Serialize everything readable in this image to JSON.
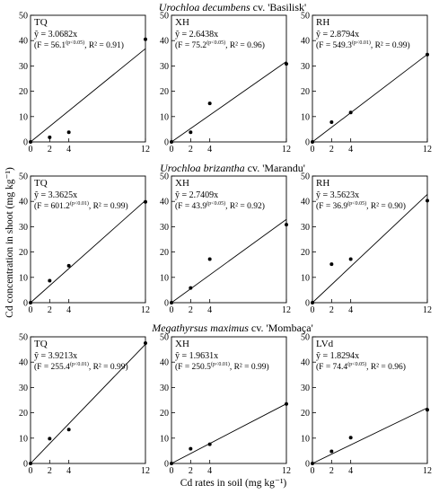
{
  "figure": {
    "ylabel": "Cd concentration in shoot (mg kg⁻¹)",
    "xlabel": "Cd rates in soil (mg kg⁻¹)"
  },
  "chart_data": [
    {
      "group": "Urochloa decumbens cv. 'Basilisk'",
      "panels": [
        {
          "type": "scatter",
          "label": "TQ",
          "x": [
            0,
            2,
            4,
            12
          ],
          "y": [
            0,
            1.8,
            3.8,
            40.5
          ],
          "fit": {
            "slope": 3.0682,
            "eq": "ŷ = 3.0682x",
            "stats": "(F = 56.1",
            "sig": "(p<0.05)",
            "r2": ", R² = 0.91)"
          },
          "xlim": [
            0,
            12
          ],
          "ylim": [
            0,
            50
          ],
          "xticks": [
            0,
            2,
            4,
            12
          ],
          "yticks": [
            0,
            10,
            20,
            30,
            40,
            50
          ]
        },
        {
          "type": "scatter",
          "label": "XH",
          "x": [
            0,
            2,
            4,
            12
          ],
          "y": [
            0,
            3.8,
            15.2,
            30.8
          ],
          "fit": {
            "slope": 2.6438,
            "eq": "ŷ = 2.6438x",
            "stats": "(F = 75.2",
            "sig": "(p<0.05)",
            "r2": ", R² = 0.96)"
          },
          "xlim": [
            0,
            12
          ],
          "ylim": [
            0,
            50
          ],
          "xticks": [
            0,
            2,
            4,
            12
          ],
          "yticks": [
            0,
            10,
            20,
            30,
            40,
            50
          ]
        },
        {
          "type": "scatter",
          "label": "RH",
          "x": [
            0,
            2,
            4,
            12
          ],
          "y": [
            0,
            7.8,
            11.6,
            34.5
          ],
          "fit": {
            "slope": 2.8794,
            "eq": "ŷ = 2.8794x",
            "stats": "(F = 549.3",
            "sig": "(p<0.01)",
            "r2": ", R² = 0.99)"
          },
          "xlim": [
            0,
            12
          ],
          "ylim": [
            0,
            50
          ],
          "xticks": [
            0,
            2,
            4,
            12
          ],
          "yticks": [
            0,
            10,
            20,
            30,
            40,
            50
          ]
        }
      ]
    },
    {
      "group": "Urochloa brizantha cv. 'Marandu'",
      "panels": [
        {
          "type": "scatter",
          "label": "TQ",
          "x": [
            0,
            2,
            4,
            12
          ],
          "y": [
            0,
            8.7,
            14.6,
            39.8
          ],
          "fit": {
            "slope": 3.3625,
            "eq": "ŷ = 3.3625x",
            "stats": "(F = 601.2",
            "sig": "(p<0.01)",
            "r2": ", R² = 0.99)"
          },
          "xlim": [
            0,
            12
          ],
          "ylim": [
            0,
            50
          ],
          "xticks": [
            0,
            2,
            4,
            12
          ],
          "yticks": [
            0,
            10,
            20,
            30,
            40,
            50
          ]
        },
        {
          "type": "scatter",
          "label": "XH",
          "x": [
            0,
            2,
            4,
            12
          ],
          "y": [
            0,
            5.8,
            17.2,
            30.8
          ],
          "fit": {
            "slope": 2.7409,
            "eq": "ŷ = 2.7409x",
            "stats": "(F = 43.9",
            "sig": "(p<0.05)",
            "r2": ", R² = 0.92)"
          },
          "xlim": [
            0,
            12
          ],
          "ylim": [
            0,
            50
          ],
          "xticks": [
            0,
            2,
            4,
            12
          ],
          "yticks": [
            0,
            10,
            20,
            30,
            40,
            50
          ]
        },
        {
          "type": "scatter",
          "label": "RH",
          "x": [
            0,
            2,
            4,
            12
          ],
          "y": [
            0,
            15.2,
            17.2,
            40.3
          ],
          "fit": {
            "slope": 3.5623,
            "eq": "ŷ = 3.5623x",
            "stats": "(F = 36.9",
            "sig": "(p<0.05)",
            "r2": ", R² = 0.90)"
          },
          "xlim": [
            0,
            12
          ],
          "ylim": [
            0,
            50
          ],
          "xticks": [
            0,
            2,
            4,
            12
          ],
          "yticks": [
            0,
            10,
            20,
            30,
            40,
            50
          ]
        }
      ]
    },
    {
      "group": "Megathyrsus maximus cv. 'Mombaça'",
      "panels": [
        {
          "type": "scatter",
          "label": "TQ",
          "x": [
            0,
            2,
            4,
            12
          ],
          "y": [
            0,
            9.8,
            13.4,
            47.5
          ],
          "fit": {
            "slope": 3.9213,
            "eq": "ŷ = 3.9213x",
            "stats": "(F = 255.4",
            "sig": "(p<0.01)",
            "r2": ", R² = 0.99)"
          },
          "xlim": [
            0,
            12
          ],
          "ylim": [
            0,
            50
          ],
          "xticks": [
            0,
            2,
            4,
            12
          ],
          "yticks": [
            0,
            10,
            20,
            30,
            40,
            50
          ]
        },
        {
          "type": "scatter",
          "label": "XH",
          "x": [
            0,
            2,
            4,
            12
          ],
          "y": [
            0,
            5.8,
            7.6,
            23.5
          ],
          "fit": {
            "slope": 1.9631,
            "eq": "ŷ = 1.9631x",
            "stats": "(F = 250.5",
            "sig": "(p<0.01)",
            "r2": ", R² = 0.99)"
          },
          "xlim": [
            0,
            12
          ],
          "ylim": [
            0,
            50
          ],
          "xticks": [
            0,
            2,
            4,
            12
          ],
          "yticks": [
            0,
            10,
            20,
            30,
            40,
            50
          ]
        },
        {
          "type": "scatter",
          "label": "LVd",
          "x": [
            0,
            2,
            4,
            12
          ],
          "y": [
            0,
            4.8,
            10.2,
            21.2
          ],
          "fit": {
            "slope": 1.8294,
            "eq": "ŷ = 1.8294x",
            "stats": "(F = 74.4",
            "sig": "(p<0.05)",
            "r2": ", R² = 0.96)"
          },
          "xlim": [
            0,
            12
          ],
          "ylim": [
            0,
            50
          ],
          "xticks": [
            0,
            2,
            4,
            12
          ],
          "yticks": [
            0,
            10,
            20,
            30,
            40,
            50
          ]
        }
      ]
    }
  ]
}
